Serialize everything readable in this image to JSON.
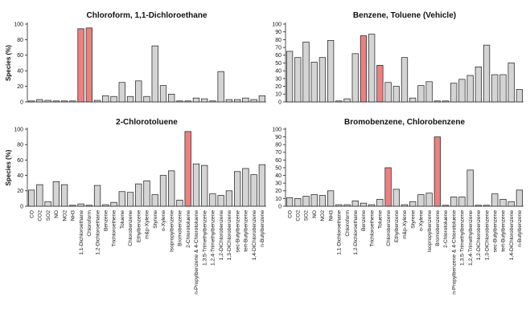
{
  "colors": {
    "normal_fill": "#d4d4d4",
    "highlight_fill": "#ec8080",
    "stroke": "#1a1a1a"
  },
  "categories": [
    "CO",
    "CO2",
    "SO2",
    "NO",
    "NO2",
    "NH3",
    "1,1-Dichloroethane",
    "Chloroform",
    "1,2-Dichloroethane",
    "Benzene",
    "Trichloroethene",
    "Toluene",
    "Chlorobenzene",
    "Ethylbenzene",
    "m&p-Xylene",
    "Styrene",
    "o-Xylene",
    "Isopropylbenzene",
    "Bromobenzene",
    "2-Chlorotoluene",
    "n-Propylbenzene & 4-Chlorotoluene",
    "1,3,5-Trimethylbenzene",
    "1,2,4-Trimethylbenzene",
    "1,2-DiChlorobenzene",
    "1,3-DiChlorobenzene",
    "sec-Butylbenzene",
    "tert-Butylbenzene",
    "1,4-DiChlorobenzene",
    "n-Butylbenzene"
  ],
  "chart_data": [
    {
      "type": "bar",
      "title": "Chloroform, 1,1-Dichloroethane",
      "ylabel": "Species (%)",
      "ylim": [
        0,
        100
      ],
      "yticks": [
        0,
        20,
        40,
        60,
        80,
        100
      ],
      "values": [
        1,
        3,
        2,
        0,
        0,
        0,
        94,
        95,
        2,
        8,
        7,
        25,
        7,
        27,
        7,
        72,
        21,
        10,
        1,
        1,
        5,
        4,
        1,
        39,
        3,
        3,
        5,
        3,
        8
      ],
      "highlight": [
        6,
        7
      ]
    },
    {
      "type": "bar",
      "title": "Benzene, Toluene (Vehicle)",
      "ylabel": "",
      "ylim": [
        0,
        100
      ],
      "yticks": [
        0,
        10,
        20,
        30,
        40,
        50,
        60,
        70,
        80,
        90,
        100
      ],
      "values": [
        65,
        57,
        77,
        51,
        57,
        79,
        0,
        4,
        62,
        85,
        87,
        47,
        25,
        20,
        57,
        5,
        21,
        26,
        0,
        0,
        24,
        29,
        34,
        45,
        73,
        35,
        35,
        50,
        16
      ],
      "highlight": [
        9,
        11
      ]
    },
    {
      "type": "bar",
      "title": "2-Chlorotoluene",
      "ylabel": "Species (%)",
      "ylim": [
        0,
        100
      ],
      "yticks": [
        0,
        20,
        40,
        60,
        80,
        100
      ],
      "values": [
        21,
        28,
        6,
        32,
        28,
        0,
        3,
        0,
        27,
        2,
        5,
        19,
        18,
        29,
        33,
        15,
        40,
        46,
        8,
        97,
        55,
        53,
        16,
        14,
        20,
        45,
        49,
        41,
        54
      ],
      "highlight": [
        19
      ]
    },
    {
      "type": "bar",
      "title": "Bromobenzene, Chlorobenzene",
      "ylabel": "",
      "ylim": [
        0,
        100
      ],
      "yticks": [
        0,
        10,
        20,
        30,
        40,
        50,
        60,
        70,
        80,
        90,
        100
      ],
      "values": [
        11,
        10,
        13,
        15,
        14,
        20,
        2,
        2,
        7,
        4,
        2,
        9,
        50,
        22,
        2,
        6,
        15,
        17,
        90,
        0,
        12,
        12,
        47,
        1,
        1,
        16,
        9,
        6,
        21
      ],
      "highlight": [
        12,
        18
      ]
    }
  ]
}
